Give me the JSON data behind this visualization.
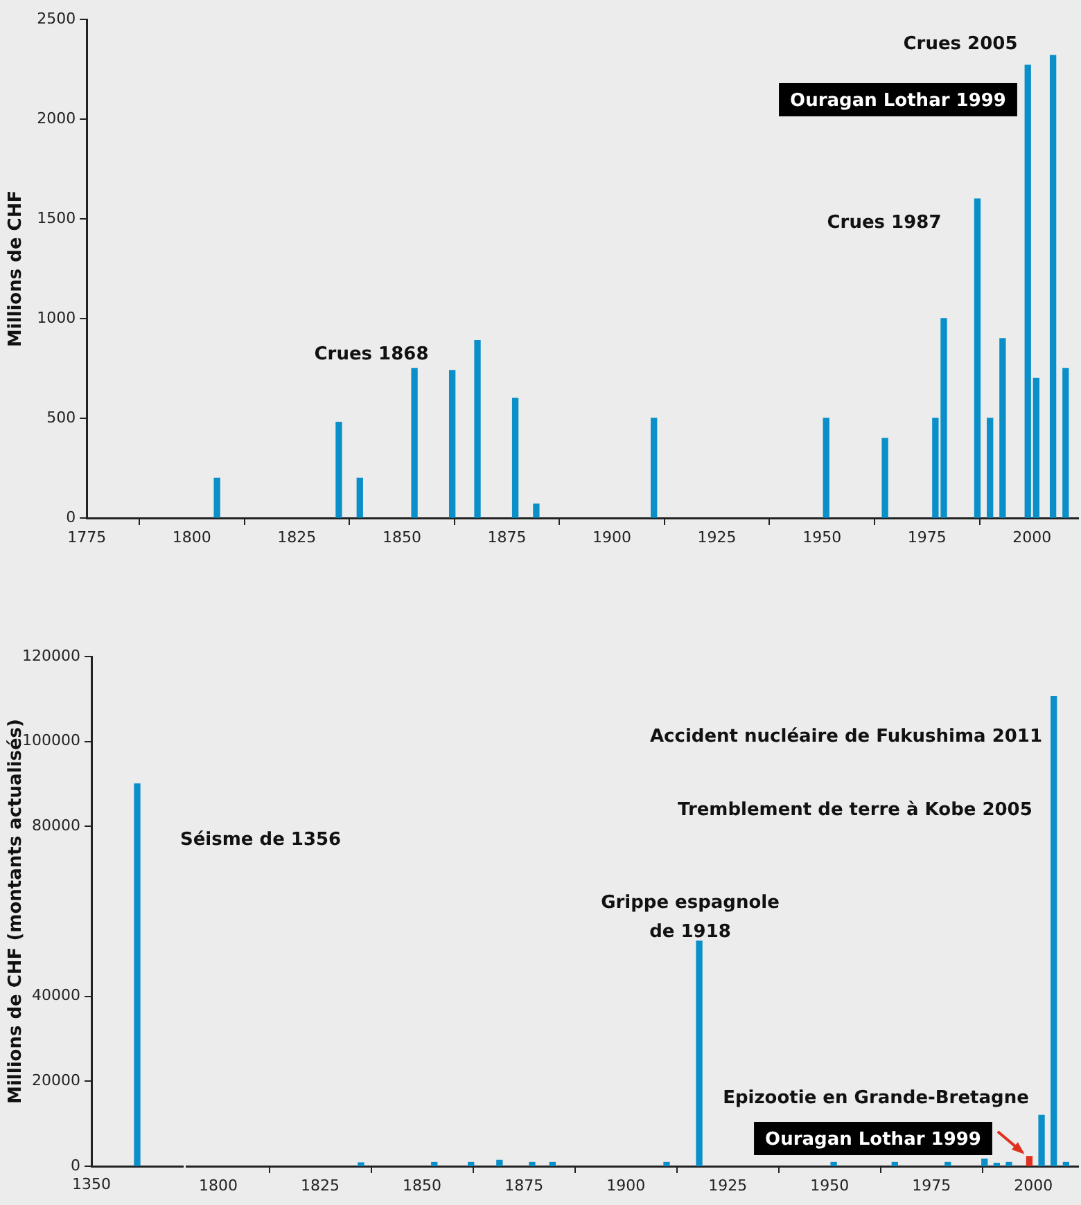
{
  "chart_data": [
    {
      "type": "bar",
      "ylabel": "Millions de CHF",
      "color": "#0a8fc8",
      "x": [
        1806,
        1835,
        1840,
        1853,
        1862,
        1868,
        1877,
        1882,
        1910,
        1951,
        1965,
        1977,
        1979,
        1987,
        1990,
        1993,
        1999,
        2001,
        2005,
        2008
      ],
      "values": [
        200,
        480,
        200,
        750,
        740,
        890,
        600,
        70,
        500,
        500,
        400,
        500,
        1000,
        1600,
        500,
        900,
        2270,
        700,
        2320,
        750
      ],
      "xlim": [
        1775,
        2011
      ],
      "xticks": [
        1775,
        1800,
        1825,
        1850,
        1875,
        1900,
        1925,
        1950,
        1975,
        2000
      ],
      "ylim": [
        0,
        2500
      ],
      "yticks": [
        0,
        500,
        1000,
        1500,
        2000,
        2500
      ],
      "annotations": [
        "Crues 1868",
        "Crues 1987",
        "Crues 2005",
        "Ouragan Lothar 1999"
      ]
    },
    {
      "type": "bar",
      "ylabel": "Millions de CHF (montants actualisés)",
      "color": "#0a8fc8",
      "categories": [
        null
      ],
      "values": [
        90000
      ],
      "ylim": [
        0,
        120000
      ],
      "yticks": [
        0,
        20000,
        40000,
        80000,
        100000,
        120000
      ],
      "annotations": [
        "1350",
        "Séisme de 1356"
      ]
    },
    {
      "type": "bar",
      "tick_labels": "x",
      "x": [
        1835,
        1853,
        1862,
        1869,
        1877,
        1882,
        1910,
        1918,
        1951,
        1966,
        1979,
        1988,
        1991,
        1994,
        1999,
        2002,
        2005,
        2008
      ],
      "values": [
        800,
        900,
        900,
        1400,
        900,
        900,
        900,
        53000,
        900,
        900,
        900,
        1700,
        700,
        900,
        2300,
        12000,
        110600,
        900
      ],
      "colors": [
        "#0a8fc8",
        "#0a8fc8",
        "#0a8fc8",
        "#0a8fc8",
        "#0a8fc8",
        "#0a8fc8",
        "#0a8fc8",
        "#0a8fc8",
        "#0a8fc8",
        "#0a8fc8",
        "#0a8fc8",
        "#0a8fc8",
        "#0a8fc8",
        "#0a8fc8",
        "#e0301e",
        "#0a8fc8",
        "#0a8fc8",
        "#0a8fc8"
      ],
      "xlim": [
        1792,
        2011
      ],
      "xticks": [
        1800,
        1825,
        1850,
        1875,
        1900,
        1925,
        1950,
        1975,
        2000
      ],
      "ylim": [
        0,
        120000
      ],
      "yticks": [
        0,
        20000,
        40000,
        80000,
        100000,
        120000
      ],
      "annotations": [
        "Grippe espagnole\nde 1918",
        "Accident nucléaire de Fukushima 2011",
        "Tremblement de terre à Kobe 2005",
        "Epizootie en Grande-Bretagne",
        {
          "text": "Ouragan Lothar 1999",
          "x": 1999,
          "y": 2300
        }
      ]
    }
  ]
}
